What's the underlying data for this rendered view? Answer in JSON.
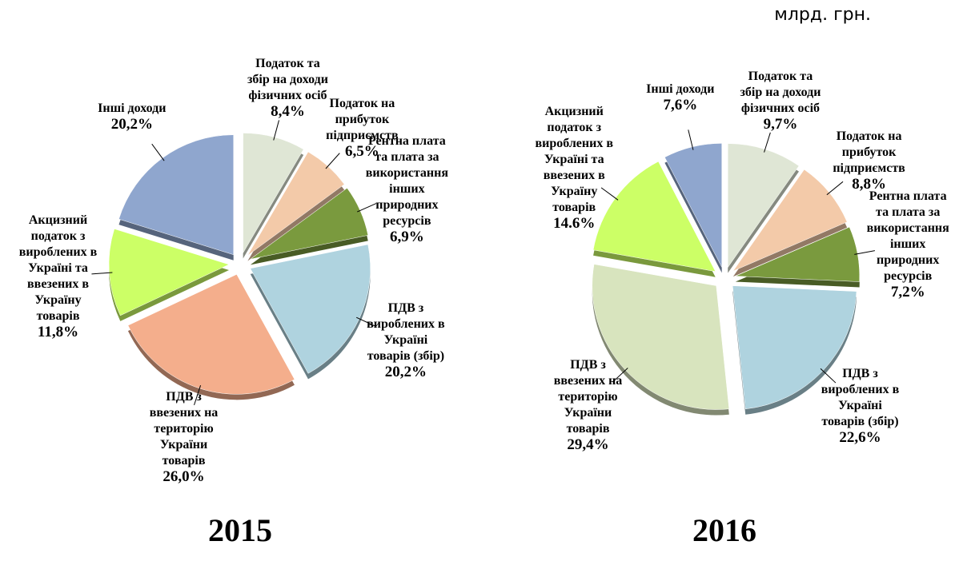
{
  "unit": "млрд. грн.",
  "chart_data": [
    {
      "type": "pie",
      "title": "2015",
      "categories": [
        "Податок та збір на доходи фізичних осіб",
        "Податок на прибуток підприємств",
        "Рентна плата та плата за використання інших природних ресурсів",
        "ПДВ з вироблених в Україні товарів (збір)",
        "ПДВ з ввезених на територію України товарів",
        "Акцизний податок з вироблених в Україні та ввезених в Україну товарів",
        "Інші доходи"
      ],
      "values": [
        8.4,
        6.5,
        6.9,
        20.2,
        26.0,
        11.8,
        20.2
      ],
      "value_labels": [
        "8,4%",
        "6,5%",
        "6,9%",
        "20,2%",
        "26,0%",
        "11,8%",
        "20,2%"
      ],
      "colors": [
        "#dfe6d5",
        "#f3caa9",
        "#7a9a3e",
        "#afd3df",
        "#f4ae8c",
        "#ccff66",
        "#8fa6ce"
      ]
    },
    {
      "type": "pie",
      "title": "2016",
      "categories": [
        "Податок та збір на доходи фізичних осіб",
        "Податок на прибуток підприємств",
        "Рентна плата та плата за використання інших природних ресурсів",
        "ПДВ з вироблених в Україні товарів (збір)",
        "ПДВ з ввезених на територію України товарів",
        "Акцизний податок з вироблених в Україні та ввезених в Україну товарів",
        "Інші доходи"
      ],
      "values": [
        9.7,
        8.8,
        7.2,
        22.6,
        29.4,
        14.6,
        7.6
      ],
      "value_labels": [
        "9,7%",
        "8,8%",
        "7,2%",
        "22,6%",
        "29,4%",
        "14.6%",
        "7,6%"
      ],
      "colors": [
        "#dfe6d5",
        "#f3caa9",
        "#7a9a3e",
        "#afd3df",
        "#d8e4be",
        "#ccff66",
        "#8fa6ce"
      ]
    }
  ]
}
